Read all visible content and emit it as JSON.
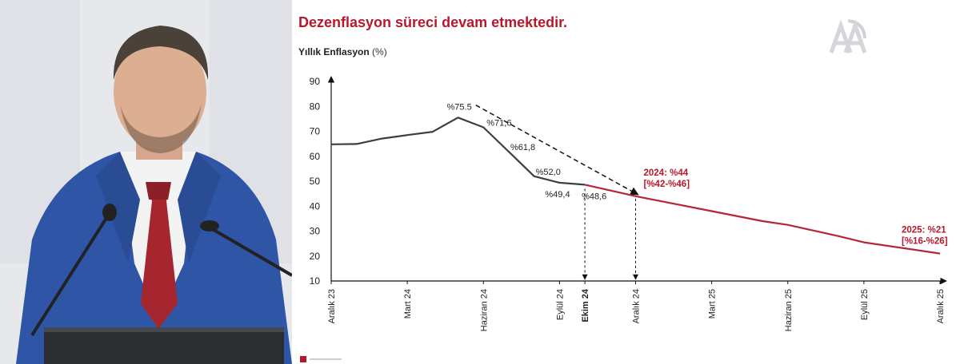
{
  "slide": {
    "title": "Dezenflasyon süreci devam etmektedir.",
    "y_axis_title": "Yıllık Enflasyon",
    "y_axis_unit": "(%)"
  },
  "colors": {
    "title": "#b8182d",
    "actual_line": "#3a3f45",
    "projection_line": "#b3263b",
    "annotation_red": "#b8182d",
    "suit": "#2f55a6",
    "tie": "#a5262f"
  },
  "chart_data": {
    "type": "line",
    "title": "Dezenflasyon süreci devam etmektedir.",
    "ylabel": "Yıllık Enflasyon (%)",
    "ylim": [
      10,
      90
    ],
    "yticks": [
      10,
      20,
      30,
      40,
      50,
      60,
      70,
      80,
      90
    ],
    "x_tick_labels": [
      "Aralık 23",
      "Mart 24",
      "Haziran 24",
      "Eylül 24",
      "Ekim 24",
      "Aralık 24",
      "Mart 25",
      "Haziran 25",
      "Eylül 25",
      "Aralık 25"
    ],
    "x_tick_months": [
      0,
      3,
      6,
      9,
      10,
      12,
      15,
      18,
      21,
      24
    ],
    "bold_x_tick": "Ekim 24",
    "series": [
      {
        "style": "solid-dark",
        "points": [
          {
            "month": 0,
            "value": 64.8
          },
          {
            "month": 1,
            "value": 64.9
          },
          {
            "month": 2,
            "value": 67.1
          },
          {
            "month": 3,
            "value": 68.5
          },
          {
            "month": 4,
            "value": 69.8
          },
          {
            "month": 5,
            "value": 75.5
          },
          {
            "month": 6,
            "value": 71.6
          },
          {
            "month": 7,
            "value": 61.8
          },
          {
            "month": 8,
            "value": 52.0
          },
          {
            "month": 9,
            "value": 49.4
          },
          {
            "month": 10,
            "value": 48.6
          }
        ]
      },
      {
        "style": "solid-red",
        "points": [
          {
            "month": 10,
            "value": 48.6
          },
          {
            "month": 12,
            "value": 44.0
          },
          {
            "month": 15,
            "value": 38.0
          },
          {
            "month": 17,
            "value": 34.0
          },
          {
            "month": 18,
            "value": 32.5
          },
          {
            "month": 20,
            "value": 28.0
          },
          {
            "month": 21,
            "value": 25.5
          },
          {
            "month": 24,
            "value": 21.0
          }
        ]
      }
    ],
    "point_labels": [
      {
        "month": 5,
        "value": 75.5,
        "text": "%75.5",
        "dx": -14,
        "dy": -10
      },
      {
        "month": 6,
        "value": 71.6,
        "text": "%71,6",
        "dx": 4,
        "dy": -2
      },
      {
        "month": 7,
        "value": 61.8,
        "text": "%61,8",
        "dx": 2,
        "dy": -2
      },
      {
        "month": 8,
        "value": 52.0,
        "text": "%52,0",
        "dx": 2,
        "dy": -2
      },
      {
        "month": 9,
        "value": 49.4,
        "text": "%49,4",
        "dx": -18,
        "dy": 18
      },
      {
        "month": 10,
        "value": 48.6,
        "text": "%48,6",
        "dx": -4,
        "dy": 18
      }
    ],
    "trend_arrow": {
      "from": {
        "month": 5.7,
        "value": 80.5
      },
      "to": {
        "month": 12.1,
        "value": 44.6
      }
    },
    "vertical_markers": [
      {
        "month": 10,
        "from_value": 47.0,
        "to_value": 10
      },
      {
        "month": 12,
        "from_value": 43.0,
        "to_value": 10
      }
    ],
    "annotations": [
      {
        "month": 12,
        "value": 44,
        "lines": [
          "2024: %44",
          "[%42-%46]"
        ],
        "dx": 10,
        "dy": -26
      },
      {
        "month": 24,
        "value": 21,
        "lines": [
          "2025: %21",
          "[%16-%26]"
        ],
        "dx": -48,
        "dy": -26
      }
    ]
  }
}
